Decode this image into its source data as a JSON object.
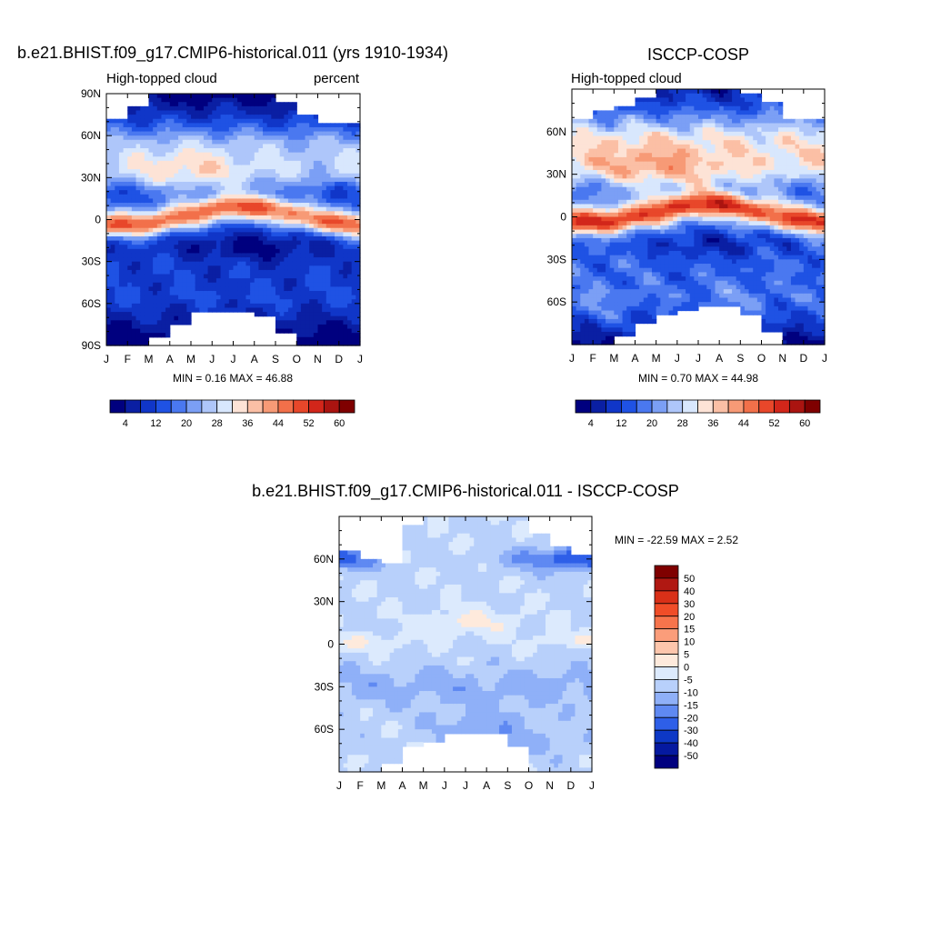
{
  "month_labels": [
    "J",
    "F",
    "M",
    "A",
    "M",
    "J",
    "J",
    "A",
    "S",
    "O",
    "N",
    "D",
    "J"
  ],
  "panels": [
    {
      "id": "model",
      "title": "b.e21.BHIST.f09_g17.CMIP6-historical.011 (yrs 1910-1934)",
      "left_label": "High-topped cloud",
      "right_label": "percent",
      "lat_labels": [
        "90N",
        "60N",
        "30N",
        "0",
        "30S",
        "60S",
        "90S"
      ],
      "minmax": "MIN =   0.16 MAX =  46.88"
    },
    {
      "id": "obs",
      "title": "ISCCP-COSP",
      "left_label": "High-topped cloud",
      "right_label": "",
      "lat_labels": [
        "60N",
        "30N",
        "0",
        "30S",
        "60S"
      ],
      "minmax": "MIN =   0.70 MAX =  44.98"
    },
    {
      "id": "diff",
      "title": "b.e21.BHIST.f09_g17.CMIP6-historical.011 - ISCCP-COSP",
      "left_label": "",
      "right_label": "",
      "lat_labels": [
        "60N",
        "30N",
        "0",
        "30S",
        "60S"
      ],
      "minmax": "MIN = -22.59 MAX =   2.52"
    }
  ],
  "colorbar_abs": {
    "labels": [
      "4",
      "12",
      "20",
      "28",
      "36",
      "44",
      "52",
      "60"
    ],
    "colors": [
      "#00007f",
      "#0a1fa3",
      "#1036c8",
      "#1f52e4",
      "#4a78f0",
      "#7b9ff5",
      "#aec6fa",
      "#d8e7fd",
      "#fde3d6",
      "#fbbfa5",
      "#f79a76",
      "#f2704a",
      "#e8472a",
      "#d2261a",
      "#aa1410",
      "#7f0000"
    ]
  },
  "colorbar_diff": {
    "labels": [
      "50",
      "40",
      "30",
      "20",
      "15",
      "10",
      "5",
      "0",
      "-5",
      "-10",
      "-15",
      "-20",
      "-30",
      "-40",
      "-50"
    ],
    "colors": [
      "#7f0000",
      "#b01812",
      "#d93018",
      "#f04d28",
      "#f7744c",
      "#fb9d7a",
      "#fdc6ac",
      "#feeadc",
      "#dceafd",
      "#b8d0fb",
      "#8fb0f8",
      "#5f89f2",
      "#2e5fe8",
      "#0d38c6",
      "#0519a0",
      "#00007f"
    ]
  },
  "chart_data": [
    {
      "type": "heatmap",
      "title": "b.e21.BHIST.f09_g17.CMIP6-historical.011 (yrs 1910-1934)",
      "variable": "High-topped cloud",
      "units": "percent",
      "x": [
        "J",
        "F",
        "M",
        "A",
        "M",
        "J",
        "J",
        "A",
        "S",
        "O",
        "N",
        "D",
        "J"
      ],
      "y_range": [
        -90,
        90
      ],
      "y_ticks": [
        "90N",
        "60N",
        "30N",
        "0",
        "30S",
        "60S",
        "90S"
      ],
      "min": 0.16,
      "max": 46.88,
      "levels": [
        4,
        8,
        12,
        16,
        20,
        24,
        28,
        32,
        36,
        40,
        44,
        48,
        52,
        56,
        60
      ],
      "zonal_features": [
        {
          "lat": 8,
          "month_peak": "Jul",
          "value": 44
        },
        {
          "lat": -5,
          "month_peak": "Jan",
          "value": 36
        },
        {
          "lat": -18,
          "month_peak": "Jul",
          "value": 4
        },
        {
          "lat": 20,
          "month_peak": "Jan",
          "value": 8
        },
        {
          "lat": 40,
          "month_peak": "Apr",
          "value": 24
        },
        {
          "lat": 80,
          "month_peak": "Jun",
          "value": 2
        },
        {
          "lat": -80,
          "month_peak": "Dec",
          "value": 2
        }
      ]
    },
    {
      "type": "heatmap",
      "title": "ISCCP-COSP",
      "variable": "High-topped cloud",
      "x": [
        "J",
        "F",
        "M",
        "A",
        "M",
        "J",
        "J",
        "A",
        "S",
        "O",
        "N",
        "D",
        "J"
      ],
      "y_range": [
        -90,
        90
      ],
      "y_ticks": [
        "60N",
        "30N",
        "0",
        "30S",
        "60S"
      ],
      "min": 0.7,
      "max": 44.98,
      "levels": [
        4,
        8,
        12,
        16,
        20,
        24,
        28,
        32,
        36,
        40,
        44,
        48,
        52,
        56,
        60
      ],
      "zonal_features": [
        {
          "lat": 8,
          "month_peak": "Jul",
          "value": 42
        },
        {
          "lat": -5,
          "month_peak": "Jan",
          "value": 34
        },
        {
          "lat": -18,
          "month_peak": "Jul",
          "value": 8
        },
        {
          "lat": 20,
          "month_peak": "Jan",
          "value": 10
        },
        {
          "lat": 40,
          "month_peak": "Apr",
          "value": 28
        },
        {
          "lat": 80,
          "month_peak": "Jun",
          "value": 6
        },
        {
          "lat": -80,
          "month_peak": "Dec",
          "value": 6
        }
      ]
    },
    {
      "type": "heatmap",
      "title": "b.e21.BHIST.f09_g17.CMIP6-historical.011 - ISCCP-COSP",
      "x": [
        "J",
        "F",
        "M",
        "A",
        "M",
        "J",
        "J",
        "A",
        "S",
        "O",
        "N",
        "D",
        "J"
      ],
      "y_range": [
        -90,
        90
      ],
      "y_ticks": [
        "60N",
        "30N",
        "0",
        "30S",
        "60S"
      ],
      "min": -22.59,
      "max": 2.52,
      "levels": [
        -50,
        -40,
        -30,
        -20,
        -15,
        -10,
        -5,
        0,
        5,
        10,
        15,
        20,
        30,
        40,
        50
      ],
      "zonal_features": [
        {
          "lat": 15,
          "month_peak": "Jul",
          "value": 2
        },
        {
          "lat": 0,
          "month_peak": "Feb",
          "value": 2
        },
        {
          "lat": 60,
          "month_peak": "Nov",
          "value": -20
        },
        {
          "lat": -60,
          "month_peak": "Jul",
          "value": -20
        },
        {
          "lat": 40,
          "month_peak": "Jun",
          "value": -5
        },
        {
          "lat": -30,
          "month_peak": "Jul",
          "value": -12
        }
      ]
    }
  ]
}
